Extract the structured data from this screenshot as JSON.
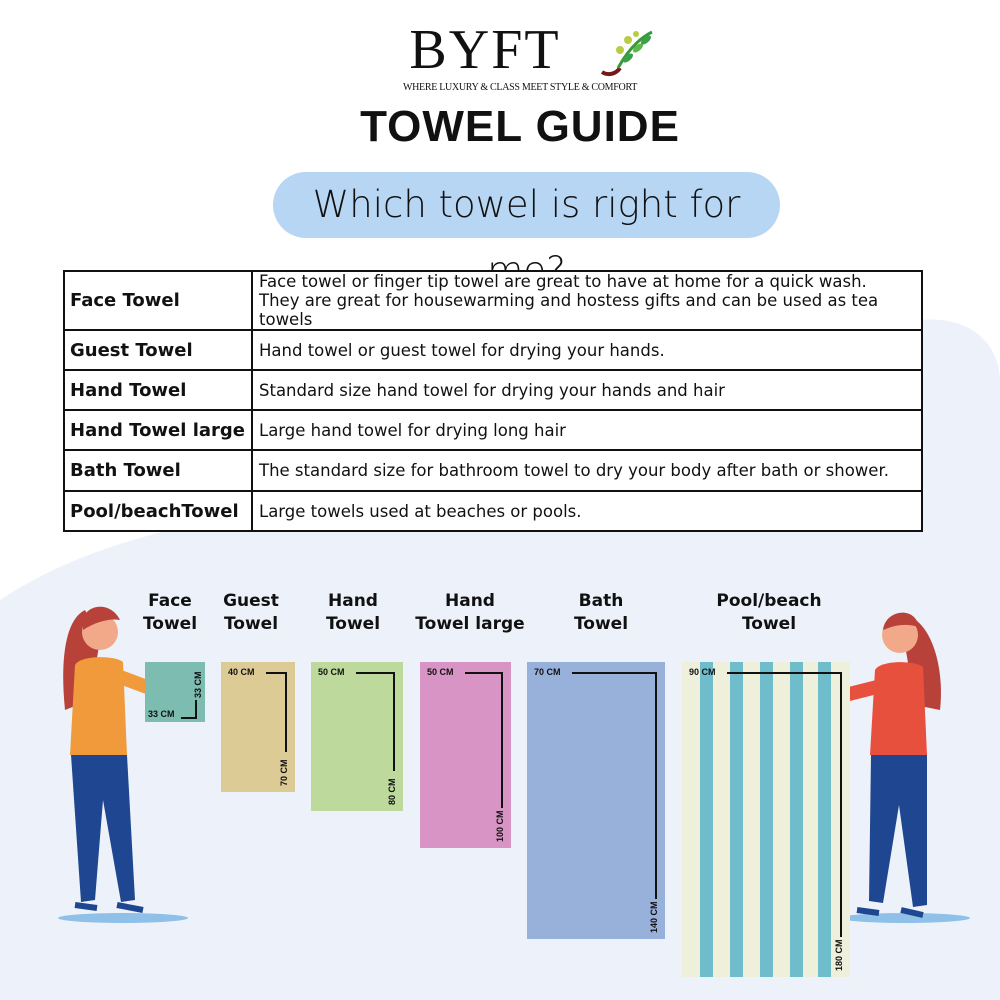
{
  "brand": {
    "name": "BYFT",
    "tagline": "WHERE LUXURY & CLASS MEET STYLE & COMFORT"
  },
  "title": "TOWEL GUIDE",
  "subtitle": "Which towel is right for me?",
  "table": [
    {
      "name": "Face Towel",
      "desc": [
        "Face towel or finger tip towel are great to have at home for a quick wash.",
        "They are great for housewarming and hostess gifts and can be used as tea towels"
      ]
    },
    {
      "name": "Guest Towel",
      "desc": [
        "Hand towel or guest towel for drying your hands."
      ]
    },
    {
      "name": "Hand Towel",
      "desc": [
        "Standard size hand towel for drying your hands and hair"
      ]
    },
    {
      "name": "Hand Towel large",
      "desc": [
        "Large hand towel for drying long hair"
      ]
    },
    {
      "name": "Bath Towel",
      "desc": [
        "The standard size for bathroom towel to dry your body after bath or shower."
      ]
    },
    {
      "name": "Pool/beachTowel",
      "desc": [
        "Large towels used at beaches or pools."
      ]
    }
  ],
  "towels": [
    {
      "label": [
        "Face",
        "Towel"
      ],
      "width": "33 CM",
      "length": "33 CM",
      "color": "#7dbcb0"
    },
    {
      "label": [
        "Guest",
        "Towel"
      ],
      "width": "40 CM",
      "length": "70 CM",
      "color": "#dccb94"
    },
    {
      "label": [
        "Hand",
        "Towel"
      ],
      "width": "50 CM",
      "length": "80 CM",
      "color": "#bdd99b"
    },
    {
      "label": [
        "Hand",
        "Towel large"
      ],
      "width": "50 CM",
      "length": "100 CM",
      "color": "#d994c6"
    },
    {
      "label": [
        "Bath",
        "Towel"
      ],
      "width": "70 CM",
      "length": "140 CM",
      "color": "#98b1db"
    },
    {
      "label": [
        "Pool/beach",
        "Towel"
      ],
      "width": "90 CM",
      "length": "180 CM",
      "color": "#eff0dc",
      "stripe_color": "#6fbccb"
    }
  ],
  "colors": {
    "pill": "#b7d6f4",
    "background_blob": "#edf2fa"
  }
}
